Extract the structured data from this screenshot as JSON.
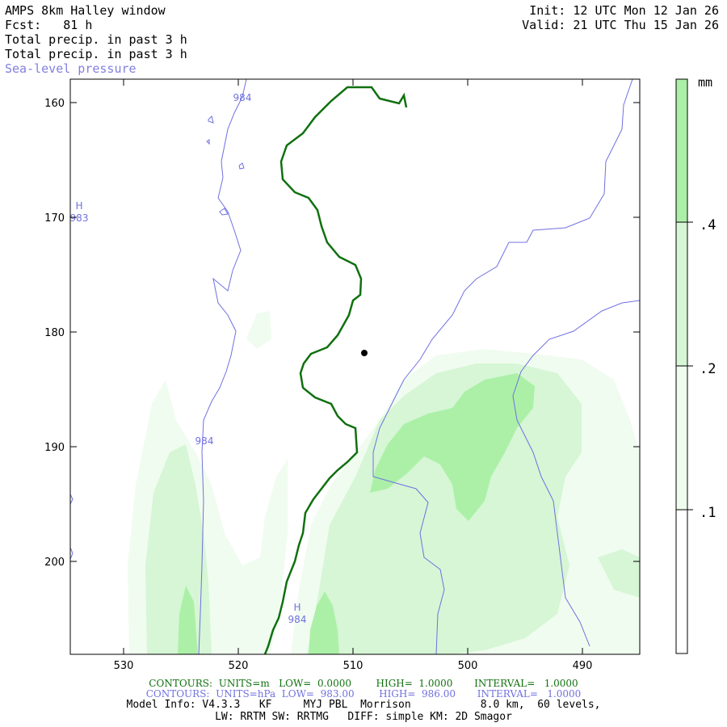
{
  "header": {
    "line1_left": "AMPS 8km Halley window",
    "line2_left": "Fcst:   81 h",
    "line3_left": "Total precip. in past 3 h",
    "line4_left": "Total precip. in past 3 h",
    "line5_left": "Sea-level pressure",
    "line1_right": "Init: 12 UTC Mon 12 Jan 26",
    "line2_right": "Valid: 21 UTC Thu 15 Jan 26"
  },
  "map": {
    "y_ticks": [
      "160",
      "170",
      "180",
      "190",
      "200"
    ],
    "x_ticks": [
      "530",
      "520",
      "510",
      "500",
      "490"
    ],
    "pressure_labels": [
      "984",
      "983",
      "984",
      "984"
    ],
    "high_labels": [
      "H",
      "H"
    ],
    "colors": {
      "precip_light": "#f0fcef",
      "precip_mid": "#d6f6d5",
      "precip_dark": "#acf0a8",
      "terrain_contour": "#107010",
      "pressure_contour": "#7070e0"
    }
  },
  "colorbar": {
    "unit": "mm",
    "labels": [
      ".4",
      ".2",
      ".1"
    ],
    "colors": [
      "#acf0a8",
      "#d6f6d5",
      "#f0fcef",
      "#ffffff"
    ]
  },
  "footer": {
    "green_line": "CONTOURS:  UNITS=m   LOW=  0.0000        HIGH=  1.0000       INTERVAL=   1.0000",
    "blue_line": "CONTOURS:  UNITS=hPa  LOW=  983.00        HIGH=  986.00       INTERVAL=   1.0000",
    "info_line1": "Model Info: V4.3.3   KF     MYJ PBL  Morrison           8.0 km,  60 levels,",
    "info_line2": "LW: RRTM SW: RRTMG   DIFF: simple KM: 2D Smagor"
  }
}
